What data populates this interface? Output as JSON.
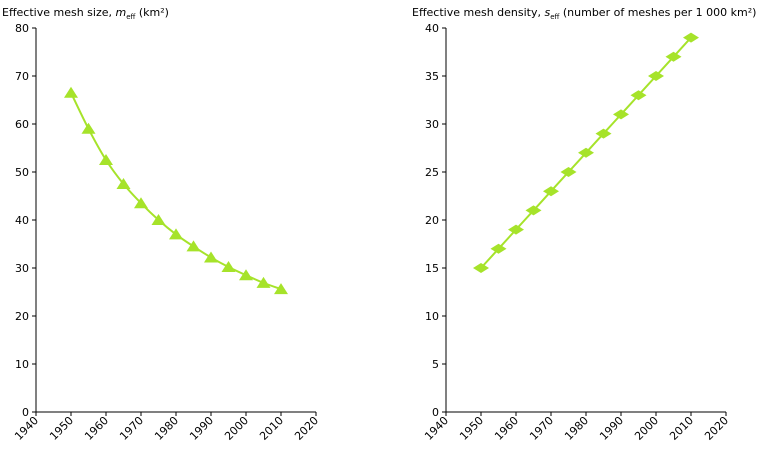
{
  "colors": {
    "series": "#a6e32a",
    "axis": "#000000"
  },
  "chart_data": [
    {
      "type": "line",
      "title_main": "Effective mesh size, ",
      "title_var": "m",
      "title_sub": "eff",
      "title_unit": " (km²)",
      "xlabel": "",
      "ylabel": "",
      "xlim": [
        1940,
        2020
      ],
      "ylim": [
        0,
        80
      ],
      "xticks": [
        1940,
        1950,
        1960,
        1970,
        1980,
        1990,
        2000,
        2010,
        2020
      ],
      "yticks": [
        0,
        10,
        20,
        30,
        40,
        50,
        60,
        70,
        80
      ],
      "marker": "triangle",
      "grid": false,
      "x": [
        1950,
        1955,
        1960,
        1965,
        1970,
        1975,
        1980,
        1985,
        1990,
        1995,
        2000,
        2005,
        2010
      ],
      "y": [
        66.5,
        59,
        52.5,
        47.5,
        43.5,
        40,
        37,
        34.5,
        32.2,
        30.2,
        28.5,
        26.9,
        25.6
      ]
    },
    {
      "type": "line",
      "title_main": "Effective mesh density, ",
      "title_var": "s",
      "title_sub": "eff",
      "title_unit": " (number of meshes per 1 000 km²)",
      "xlabel": "",
      "ylabel": "",
      "xlim": [
        1940,
        2020
      ],
      "ylim": [
        0,
        40
      ],
      "xticks": [
        1940,
        1950,
        1960,
        1970,
        1980,
        1990,
        2000,
        2010,
        2020
      ],
      "yticks": [
        0,
        5,
        10,
        15,
        20,
        25,
        30,
        35,
        40
      ],
      "marker": "diamond",
      "grid": false,
      "x": [
        1950,
        1955,
        1960,
        1965,
        1970,
        1975,
        1980,
        1985,
        1990,
        1995,
        2000,
        2005,
        2010
      ],
      "y": [
        15,
        17,
        19,
        21,
        23,
        25,
        27,
        29,
        31,
        33,
        35,
        37,
        39
      ]
    }
  ]
}
